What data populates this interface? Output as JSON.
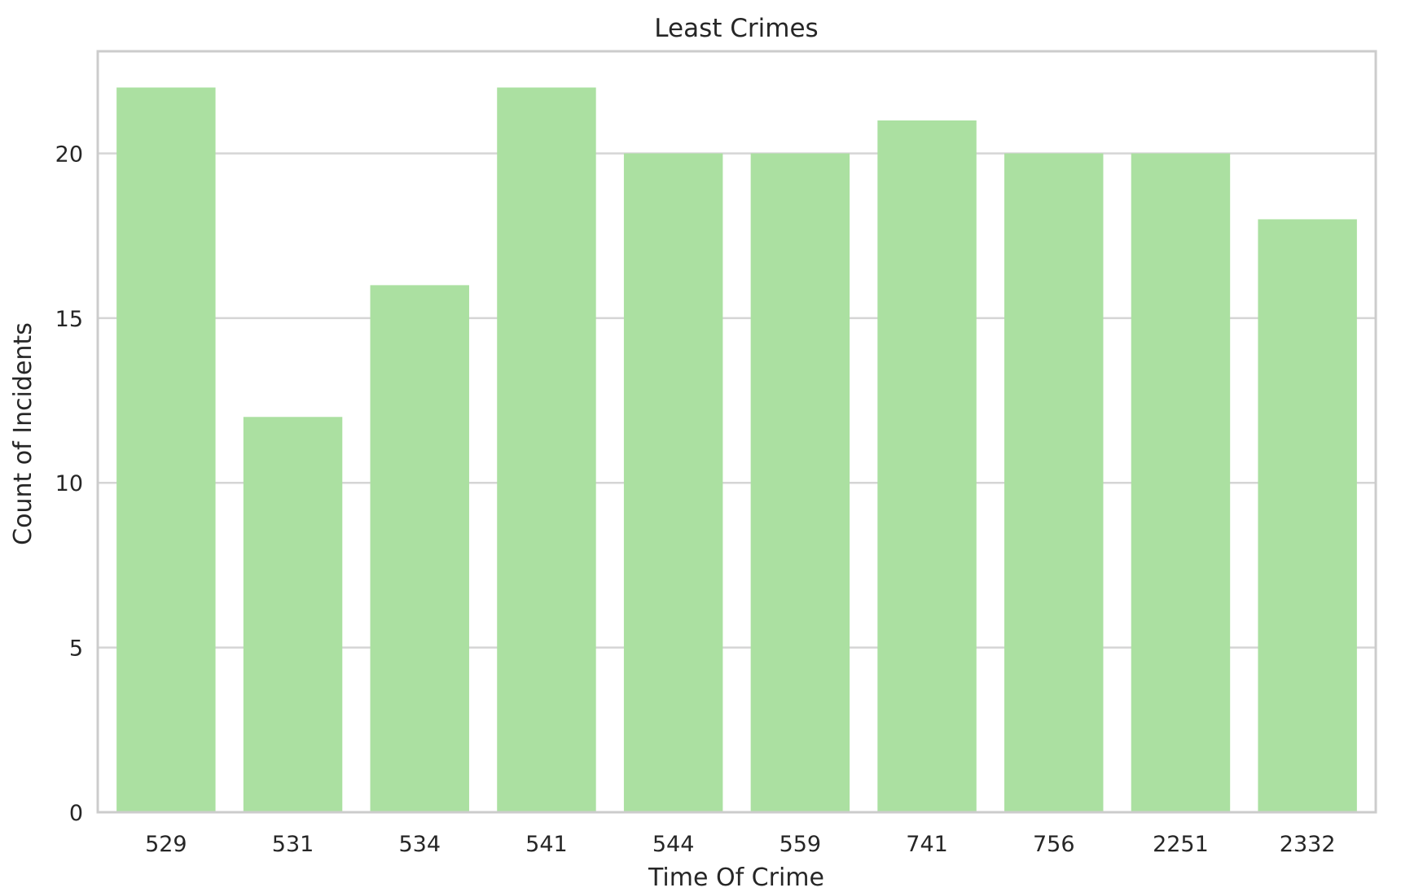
{
  "chart_data": {
    "type": "bar",
    "title": "Least Crimes",
    "xlabel": "Time Of Crime",
    "ylabel": "Count of Incidents",
    "categories": [
      "529",
      "531",
      "534",
      "541",
      "544",
      "559",
      "741",
      "756",
      "2251",
      "2332"
    ],
    "values": [
      22,
      12,
      16,
      22,
      20,
      20,
      21,
      20,
      20,
      18
    ],
    "ylim": [
      0,
      23.1
    ],
    "yticks": [
      0,
      5,
      10,
      15,
      20
    ],
    "grid": "horizontal",
    "bar_color": "#abe0a1",
    "grid_color": "#d5d5d5",
    "frame_color": "#cccccc",
    "text_color": "#262626"
  }
}
